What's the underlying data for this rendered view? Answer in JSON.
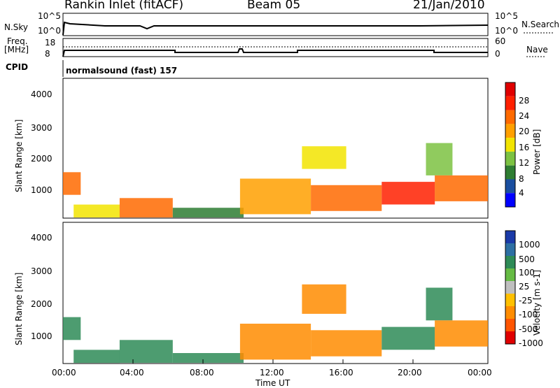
{
  "header": {
    "station": "Rankin Inlet (fitACF)",
    "beam": "Beam 05",
    "date": "21/Jan/2010"
  },
  "left_labels": {
    "nsky": "N.Sky",
    "nsky_top": "10^5",
    "nsky_bottom": "10^0",
    "freq_line1": "Freq.",
    "freq_line2": "[MHz]",
    "freq_top": "18",
    "freq_bottom": "8",
    "cpid": "CPID"
  },
  "right_labels": {
    "nsearch": "N.Search",
    "nsearch_top": "10^5",
    "nsearch_bottom": "10^0",
    "nave": "Nave",
    "nave_top": "60",
    "nave_bottom": "0"
  },
  "cpid_text": "normalsound (fast) 157",
  "colors": {
    "power_scale": [
      "#0000ff",
      "#1a4fa0",
      "#2e7d32",
      "#7cc242",
      "#f2e400",
      "#ffa000",
      "#ff6a00",
      "#ff2000",
      "#e00000"
    ],
    "velocity_scale": [
      "#1a3aa8",
      "#2d6fa3",
      "#2e8b57",
      "#66bb44",
      "#bfbfbf",
      "#ffc000",
      "#ff8c00",
      "#ff5500",
      "#e00000"
    ]
  },
  "chart_data": [
    {
      "type": "heatmap",
      "name_field": "power",
      "ylabel": "Slant Range [km]",
      "yticks": [
        "1000",
        "2000",
        "3000",
        "4000"
      ],
      "ylim": [
        180,
        4500
      ],
      "xlim_hours": [
        0,
        24
      ],
      "colorbar": {
        "label": "Power [dB]",
        "ticks": [
          "4",
          "8",
          "12",
          "16",
          "20",
          "24",
          "28"
        ],
        "range": [
          0,
          32
        ]
      },
      "bands": [
        {
          "t0": 0.0,
          "t1": 1.0,
          "r0": 900,
          "r1": 1600,
          "value": 26
        },
        {
          "t0": 0.6,
          "t1": 3.2,
          "r0": 200,
          "r1": 600,
          "value": 18
        },
        {
          "t0": 3.2,
          "t1": 6.2,
          "r0": 200,
          "r1": 800,
          "value": 24
        },
        {
          "t0": 6.2,
          "t1": 10.2,
          "r0": 200,
          "r1": 500,
          "value": 10
        },
        {
          "t0": 10.0,
          "t1": 14.0,
          "r0": 300,
          "r1": 1400,
          "value": 22
        },
        {
          "t0": 13.5,
          "t1": 16.0,
          "r0": 1700,
          "r1": 2400,
          "value": 16
        },
        {
          "t0": 14.0,
          "t1": 18.0,
          "r0": 400,
          "r1": 1200,
          "value": 24
        },
        {
          "t0": 18.0,
          "t1": 21.0,
          "r0": 600,
          "r1": 1300,
          "value": 28
        },
        {
          "t0": 20.5,
          "t1": 22.0,
          "r0": 1500,
          "r1": 2500,
          "value": 14
        },
        {
          "t0": 21.0,
          "t1": 24.0,
          "r0": 700,
          "r1": 1500,
          "value": 26
        }
      ]
    },
    {
      "type": "heatmap",
      "name_field": "velocity",
      "ylabel": "Slant Range [km]",
      "yticks": [
        "1000",
        "2000",
        "3000",
        "4000"
      ],
      "ylim": [
        180,
        4500
      ],
      "xlim_hours": [
        0,
        24
      ],
      "xticks": [
        "00:00",
        "04:00",
        "08:00",
        "12:00",
        "16:00",
        "20:00",
        "00:00"
      ],
      "xlabel": "Time UT",
      "colorbar": {
        "label": "Velocity [m s-1]",
        "ticks": [
          "1000",
          "500",
          "100",
          "25",
          "-25",
          "-100",
          "-500",
          "-1000"
        ],
        "range": [
          -1000,
          1000
        ]
      },
      "bands": [
        {
          "t0": 0.0,
          "t1": 1.0,
          "r0": 900,
          "r1": 1600,
          "value": 100
        },
        {
          "t0": 0.6,
          "t1": 3.2,
          "r0": 200,
          "r1": 600,
          "value": 200
        },
        {
          "t0": 3.2,
          "t1": 6.2,
          "r0": 200,
          "r1": 900,
          "value": 300
        },
        {
          "t0": 6.2,
          "t1": 10.2,
          "r0": 200,
          "r1": 500,
          "value": 150
        },
        {
          "t0": 10.0,
          "t1": 14.0,
          "r0": 300,
          "r1": 1400,
          "value": -200
        },
        {
          "t0": 13.5,
          "t1": 16.0,
          "r0": 1700,
          "r1": 2600,
          "value": -300
        },
        {
          "t0": 14.0,
          "t1": 18.0,
          "r0": 400,
          "r1": 1200,
          "value": -150
        },
        {
          "t0": 18.0,
          "t1": 21.0,
          "r0": 600,
          "r1": 1300,
          "value": 200
        },
        {
          "t0": 20.5,
          "t1": 22.0,
          "r0": 1500,
          "r1": 2500,
          "value": 300
        },
        {
          "t0": 21.0,
          "t1": 24.0,
          "r0": 700,
          "r1": 1500,
          "value": -100
        }
      ]
    }
  ]
}
